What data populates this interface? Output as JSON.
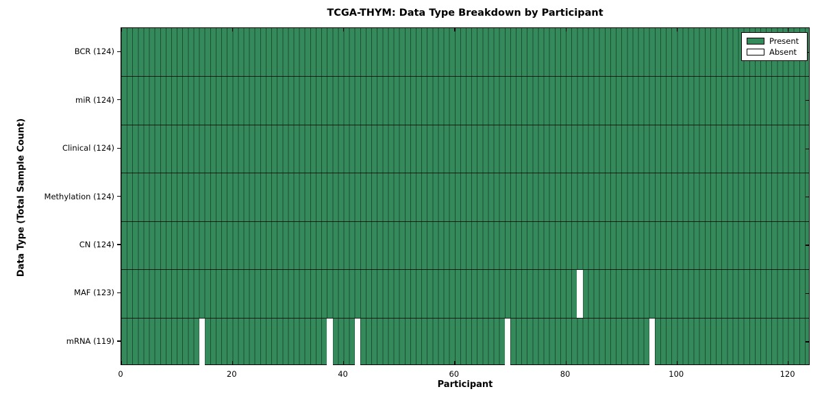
{
  "chart_data": {
    "type": "heatmap",
    "title": "TCGA-THYM: Data Type Breakdown by Participant",
    "xlabel": "Participant",
    "ylabel": "Data Type (Total Sample Count)",
    "x_ticks": [
      0,
      20,
      40,
      60,
      80,
      100,
      120
    ],
    "x_range": [
      0,
      124
    ],
    "n_participants": 124,
    "rows": [
      {
        "label": "BCR (124)",
        "data_type": "BCR",
        "total": 124,
        "absent_participants": []
      },
      {
        "label": "miR (124)",
        "data_type": "miR",
        "total": 124,
        "absent_participants": []
      },
      {
        "label": "Clinical (124)",
        "data_type": "Clinical",
        "total": 124,
        "absent_participants": []
      },
      {
        "label": "Methylation (124)",
        "data_type": "Methylation",
        "total": 124,
        "absent_participants": []
      },
      {
        "label": "CN (124)",
        "data_type": "CN",
        "total": 124,
        "absent_participants": []
      },
      {
        "label": "MAF (123)",
        "data_type": "MAF",
        "total": 123,
        "absent_participants": [
          82
        ]
      },
      {
        "label": "mRNA (119)",
        "data_type": "mRNA",
        "total": 119,
        "absent_participants": [
          14,
          37,
          42,
          69,
          95
        ]
      }
    ],
    "legend": [
      {
        "label": "Present",
        "color": "#358a5c"
      },
      {
        "label": "Absent",
        "color": "#ffffff"
      }
    ],
    "colors": {
      "present": "#358a5c",
      "absent": "#ffffff",
      "cell_edge": "rgba(0,0,0,0.45)",
      "axis": "#000000",
      "background": "#ffffff"
    },
    "legend_position": "upper right",
    "grid": "cell-edges"
  }
}
